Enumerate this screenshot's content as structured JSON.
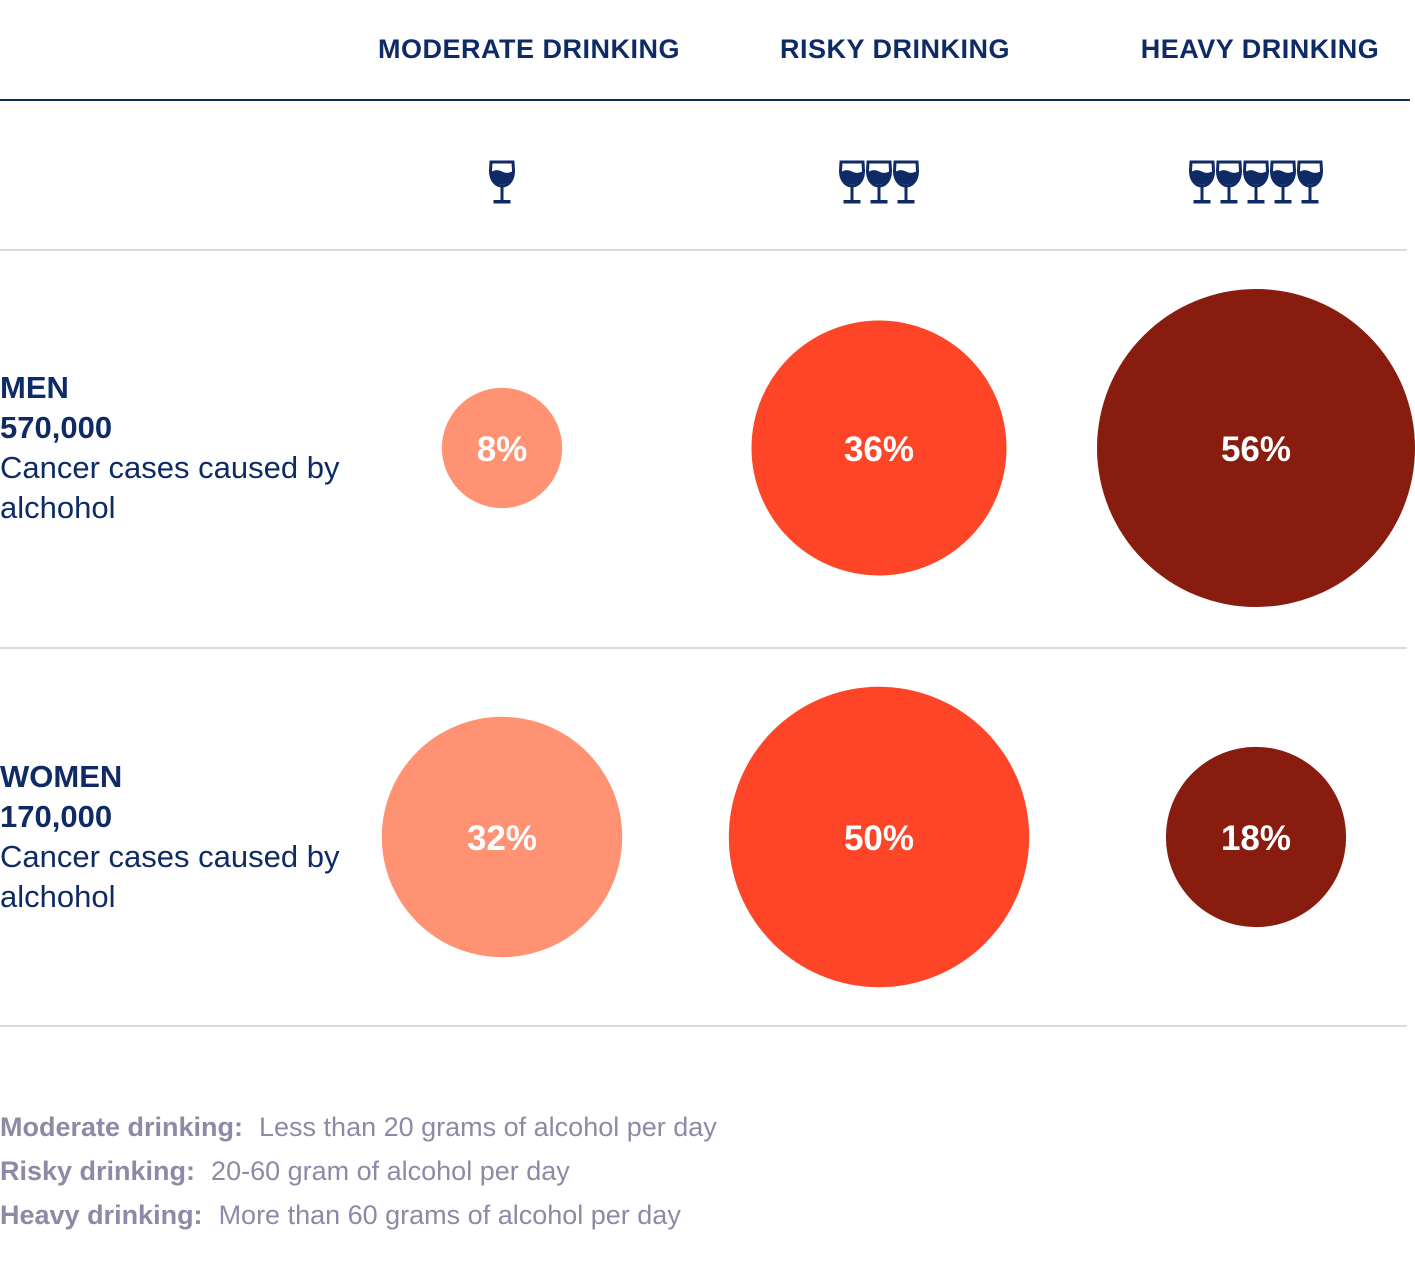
{
  "chart_data": {
    "type": "bubble",
    "categories": [
      "MODERATE DRINKING",
      "RISKY DRINKING",
      "HEAVY DRINKING"
    ],
    "glass_counts": [
      1,
      3,
      5
    ],
    "rows": [
      {
        "name": "MEN",
        "total": "570,000",
        "caption": "Cancer cases caused by alchohol",
        "values": [
          8,
          36,
          56
        ],
        "labels": [
          "8%",
          "36%",
          "56%"
        ]
      },
      {
        "name": "WOMEN",
        "total": "170,000",
        "caption": "Cancer cases caused by alchohol",
        "values": [
          32,
          50,
          18
        ],
        "labels": [
          "32%",
          "50%",
          "18%"
        ]
      }
    ],
    "colors": [
      "#fe9272",
      "#fe4528",
      "#881c0f"
    ],
    "label_color": "#ffffff",
    "text_color": "#0f2b66"
  },
  "legend": [
    {
      "key": "Moderate drinking:",
      "text": "Less than 20 grams of alcohol per day"
    },
    {
      "key": "Risky drinking:",
      "text": "20-60 gram of alcohol per day"
    },
    {
      "key": "Heavy drinking:",
      "text": "More than 60 grams of alcohol per day"
    }
  ],
  "icons": {
    "glass": "wine-glass-icon"
  }
}
